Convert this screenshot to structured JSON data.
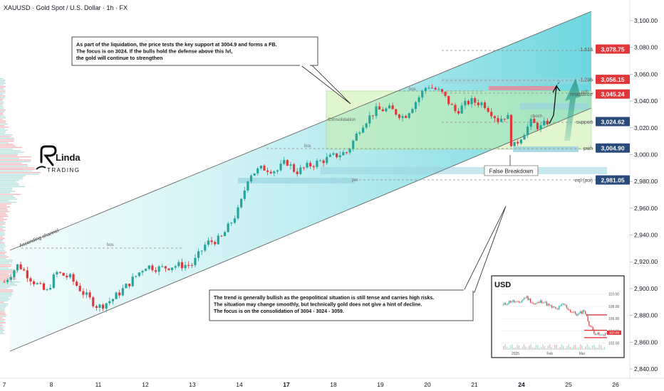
{
  "header": {
    "title": "XAUUSD · Gold Spot / U.S. Dollar · 1h · FX"
  },
  "logo": {
    "line1": "Linda",
    "line2": "TRADING"
  },
  "colors": {
    "bull": "#26a69a",
    "bear": "#e0383a",
    "background": "#ffffff",
    "channel_fill": "#26c6da",
    "marker_bg": "#2a4a7a",
    "marker_red": "#e0383a"
  },
  "chart_data": {
    "type": "candlestick",
    "title": "XAUUSD · Gold Spot / U.S. Dollar · 1h · FX",
    "x_ticks": [
      "7",
      "8",
      "11",
      "12",
      "13",
      "14",
      "17",
      "18",
      "19",
      "20",
      "21",
      "24",
      "25",
      "26"
    ],
    "y_ticks": [
      "3,100.00",
      "3,080.00",
      "3,060.00",
      "3,040.00",
      "3,020.00",
      "3,000.00",
      "2,980.00",
      "2,960.00",
      "2,940.00",
      "2,920.00",
      "2,900.00",
      "2,880.00",
      "2,860.00",
      "2,840.00"
    ],
    "ylim": [
      2836,
      3112
    ],
    "x_day_index": [
      0,
      1,
      2,
      3,
      4,
      5,
      6,
      7,
      8,
      9,
      10,
      11,
      12,
      13
    ],
    "ohlc_hourly_path_approx": [
      [
        0.0,
        2905
      ],
      [
        0.3,
        2918
      ],
      [
        0.6,
        2906
      ],
      [
        0.9,
        2897
      ],
      [
        1.1,
        2912
      ],
      [
        1.4,
        2908
      ],
      [
        1.7,
        2896
      ],
      [
        2.0,
        2886
      ],
      [
        2.3,
        2892
      ],
      [
        2.6,
        2902
      ],
      [
        3.0,
        2917
      ],
      [
        3.3,
        2915
      ],
      [
        3.6,
        2917
      ],
      [
        4.0,
        2918
      ],
      [
        4.3,
        2934
      ],
      [
        4.6,
        2937
      ],
      [
        4.8,
        2948
      ],
      [
        5.0,
        2960
      ],
      [
        5.2,
        2985
      ],
      [
        5.5,
        2990
      ],
      [
        5.8,
        2988
      ],
      [
        6.0,
        2995
      ],
      [
        6.2,
        2987
      ],
      [
        6.5,
        2992
      ],
      [
        6.8,
        2996
      ],
      [
        7.1,
        3000
      ],
      [
        7.3,
        3002
      ],
      [
        7.6,
        3022
      ],
      [
        7.9,
        3033
      ],
      [
        8.2,
        3034
      ],
      [
        8.5,
        3028
      ],
      [
        8.8,
        3042
      ],
      [
        9.0,
        3052
      ],
      [
        9.3,
        3046
      ],
      [
        9.6,
        3032
      ],
      [
        9.9,
        3040
      ],
      [
        10.2,
        3038
      ],
      [
        10.5,
        3026
      ],
      [
        10.7,
        3030
      ],
      [
        10.8,
        3004
      ],
      [
        11.0,
        3014
      ],
      [
        11.2,
        3024
      ],
      [
        11.4,
        3020
      ],
      [
        11.6,
        3026
      ]
    ],
    "price_markers": [
      {
        "value": "3,078.75",
        "label": "1.618",
        "style": "red"
      },
      {
        "value": "3,056.15",
        "label": "1.236",
        "style": "red"
      },
      {
        "value": "3,045.24",
        "label": "resistance",
        "style": "red"
      },
      {
        "value": "3,024.62",
        "label": "support",
        "style": "blue"
      },
      {
        "value": "3,004.90",
        "label": "pwh",
        "style": "blue"
      },
      {
        "value": "2,981.05",
        "label": "eql (poi)",
        "style": "blue"
      }
    ],
    "channel_label": "Ascending channel",
    "zone_labels": {
      "consolidation": "Consolidation",
      "bos": "bos",
      "choch": "choch",
      "poi": "poi",
      "pdh": "pdh"
    },
    "annotations": {
      "top_callout": [
        "As part of the liquidation, the price tests the key support at 3004.9 and forms a FB.",
        "The focus is on 3024. If the bulls hold the defense above this lvl,",
        "the gold will continue to strengthen"
      ],
      "bottom_callout": [
        "The trend is generally bullish as the geopolitical situation is still tense and carries high risks.",
        "The situation may change smoothly, but technically gold does not give a hint of decline.",
        "The focus is on the consolidation of 3004 - 3024 - 3059."
      ],
      "false_breakdown": "False Breakdown"
    },
    "inset": {
      "title": "USD",
      "y_ticks": [
        "110.00",
        "108.00",
        "106.00",
        "104.00",
        "102.00"
      ],
      "ylim": [
        101.5,
        111
      ],
      "x_ticks": [
        "2025",
        "Feb",
        "Mar"
      ],
      "marker": "103.68",
      "path": [
        [
          0,
          108.2
        ],
        [
          0.08,
          108.9
        ],
        [
          0.15,
          108.5
        ],
        [
          0.22,
          109.6
        ],
        [
          0.3,
          108.3
        ],
        [
          0.38,
          108.9
        ],
        [
          0.45,
          108.0
        ],
        [
          0.52,
          107.5
        ],
        [
          0.58,
          108.4
        ],
        [
          0.65,
          107.2
        ],
        [
          0.72,
          106.6
        ],
        [
          0.78,
          107.4
        ],
        [
          0.83,
          105.0
        ],
        [
          0.88,
          103.7
        ],
        [
          0.94,
          103.2
        ],
        [
          1.0,
          103.7
        ]
      ]
    }
  }
}
